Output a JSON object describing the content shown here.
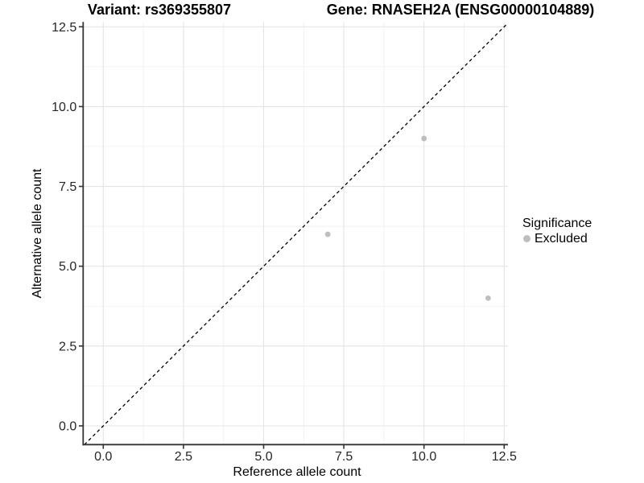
{
  "chart_data": {
    "type": "scatter",
    "titles": {
      "left": "Variant: rs369355807",
      "right": "Gene: RNASEH2A (ENSG00000104889)"
    },
    "xlabel": "Reference allele count",
    "ylabel": "Alternative allele count",
    "x_ticks": {
      "values": [
        0,
        2.5,
        5,
        7.5,
        10,
        12.5
      ],
      "labels": [
        "0.0",
        "2.5",
        "5.0",
        "7.5",
        "10.0",
        "12.5"
      ]
    },
    "y_ticks": {
      "values": [
        0,
        2.5,
        5,
        7.5,
        10,
        12.5
      ],
      "labels": [
        "0.0",
        "2.5",
        "5.0",
        "7.5",
        "10.0",
        "12.5"
      ]
    },
    "x_minor": [
      1.25,
      3.75,
      6.25,
      8.75,
      11.25
    ],
    "y_minor": [
      1.25,
      3.75,
      6.25,
      8.75,
      11.25
    ],
    "xlim": [
      -0.63,
      12.62
    ],
    "ylim": [
      -0.59,
      12.65
    ],
    "grid": "major+minor",
    "identity_line": {
      "equation": "y = x",
      "style": "dashed",
      "color": "#000000"
    },
    "series": [
      {
        "name": "Excluded",
        "color": "#bebebe",
        "points": [
          {
            "x": 7,
            "y": 6
          },
          {
            "x": 10,
            "y": 9
          },
          {
            "x": 12,
            "y": 4
          }
        ]
      }
    ],
    "legend": {
      "title": "Significance",
      "position": "right",
      "items": [
        {
          "label": "Excluded",
          "color": "#bebebe"
        }
      ]
    }
  },
  "colors": {
    "background": "#ffffff",
    "axis_line": "#333333",
    "tick_mark": "#333333",
    "grid_major": "#e4e4e4",
    "grid_minor": "#f0f0f0",
    "point": "#bebebe",
    "diagonal": "#000000"
  }
}
